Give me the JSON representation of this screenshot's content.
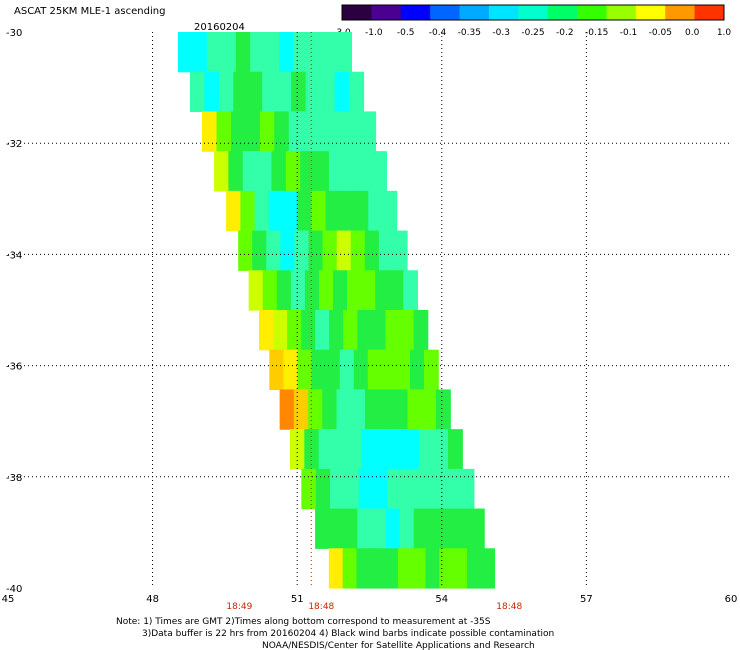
{
  "header": {
    "title": "ASCAT 25KM MLE-1 ascending",
    "date": "20160204"
  },
  "colorbar": {
    "tick_labels": [
      "-3.0",
      "-1.0",
      "-0.5",
      "-0.4",
      "-0.35",
      "-0.3",
      "-0.25",
      "-0.2",
      "-0.15",
      "-0.1",
      "-0.05",
      "0.0",
      "1.0"
    ],
    "colors": [
      "#2a0040",
      "#4a0090",
      "#0000ff",
      "#0066ff",
      "#00aaff",
      "#00e5ff",
      "#00ffcc",
      "#00ff66",
      "#33ff00",
      "#99ff00",
      "#ffff00",
      "#ff9900",
      "#ff3300"
    ]
  },
  "time_labels": [
    {
      "text": "18:49",
      "x": 49.8
    },
    {
      "text": "18:48",
      "x": 51.5
    },
    {
      "text": "18:48",
      "x": 55.4
    }
  ],
  "notes": {
    "line1": "Note: 1) Times are GMT 2)Times along bottom correspond to measurement at -35S",
    "line2": "3)Data buffer is 22 hrs from 20160204 4) Black wind barbs indicate possible contamination",
    "line3": "NOAA/NESDIS/Center for Satellite Applications and Research"
  },
  "chart_data": {
    "type": "heatmap",
    "title": "ASCAT 25KM MLE-1 ascending",
    "xlabel": "",
    "ylabel": "",
    "xlim": [
      45,
      60
    ],
    "ylim": [
      -40,
      -30
    ],
    "x_ticks": [
      45,
      48,
      51,
      54,
      57,
      60
    ],
    "y_ticks": [
      -30,
      -32,
      -34,
      -36,
      -38,
      -40
    ],
    "x_tick_labels": [
      "45",
      "48",
      "51",
      "54",
      "57",
      "60"
    ],
    "y_tick_labels": [
      "-30",
      "-32",
      "-34",
      "-36",
      "-38",
      "-40"
    ],
    "grid": true,
    "swath": {
      "left_edge": [
        [
          -30,
          48.4
        ],
        [
          -32,
          49.1
        ],
        [
          -34,
          49.8
        ],
        [
          -36,
          50.4
        ],
        [
          -38,
          51.0
        ],
        [
          -40,
          51.8
        ]
      ],
      "right_edge": [
        [
          -30,
          52.0
        ],
        [
          -32,
          52.7
        ],
        [
          -34,
          53.3
        ],
        [
          -36,
          53.9
        ],
        [
          -38,
          54.6
        ],
        [
          -40,
          55.2
        ]
      ]
    },
    "columns_note": "value grid: rows from -30 to -40, 12 cross-track columns",
    "values": [
      [
        -0.3,
        -0.3,
        -0.25,
        -0.25,
        -0.2,
        -0.25,
        -0.25,
        -0.3,
        -0.25,
        -0.25,
        -0.25,
        -0.25
      ],
      [
        -0.25,
        -0.3,
        -0.25,
        -0.2,
        -0.2,
        -0.25,
        -0.25,
        -0.2,
        -0.25,
        -0.25,
        -0.3,
        -0.25
      ],
      [
        -0.05,
        -0.15,
        -0.2,
        -0.2,
        -0.15,
        -0.2,
        -0.25,
        -0.25,
        -0.25,
        -0.25,
        -0.25,
        -0.25
      ],
      [
        -0.1,
        -0.2,
        -0.25,
        -0.25,
        -0.2,
        -0.15,
        -0.2,
        -0.2,
        -0.25,
        -0.25,
        -0.25,
        -0.25
      ],
      [
        -0.05,
        -0.15,
        -0.25,
        -0.3,
        -0.3,
        -0.2,
        -0.15,
        -0.2,
        -0.2,
        -0.2,
        -0.25,
        -0.25
      ],
      [
        -0.15,
        -0.2,
        -0.25,
        -0.3,
        -0.25,
        -0.2,
        -0.15,
        -0.1,
        -0.15,
        -0.2,
        -0.25,
        -0.25
      ],
      [
        -0.1,
        -0.15,
        -0.2,
        -0.25,
        -0.2,
        -0.15,
        -0.2,
        -0.15,
        -0.15,
        -0.2,
        -0.2,
        -0.25
      ],
      [
        -0.05,
        -0.1,
        -0.15,
        -0.2,
        -0.25,
        -0.2,
        -0.15,
        -0.2,
        -0.2,
        -0.15,
        -0.15,
        -0.2
      ],
      [
        0.2,
        -0.05,
        -0.15,
        -0.2,
        -0.2,
        -0.25,
        -0.2,
        -0.15,
        -0.15,
        -0.15,
        -0.2,
        -0.15
      ],
      [
        0.5,
        0.0,
        -0.15,
        -0.2,
        -0.25,
        -0.25,
        -0.2,
        -0.2,
        -0.2,
        -0.15,
        -0.15,
        -0.2
      ],
      [
        -0.1,
        -0.2,
        -0.25,
        -0.25,
        -0.25,
        -0.3,
        -0.3,
        -0.3,
        -0.3,
        -0.25,
        -0.25,
        -0.2
      ],
      [
        -0.15,
        -0.2,
        -0.25,
        -0.25,
        -0.3,
        -0.3,
        -0.25,
        -0.25,
        -0.25,
        -0.25,
        -0.25,
        -0.25
      ],
      [
        -0.2,
        -0.2,
        -0.2,
        -0.25,
        -0.25,
        -0.3,
        -0.25,
        -0.2,
        -0.2,
        -0.2,
        -0.2,
        -0.2
      ],
      [
        -0.05,
        -0.15,
        -0.2,
        -0.2,
        -0.2,
        -0.15,
        -0.15,
        -0.2,
        -0.15,
        -0.15,
        -0.2,
        -0.2
      ]
    ]
  }
}
